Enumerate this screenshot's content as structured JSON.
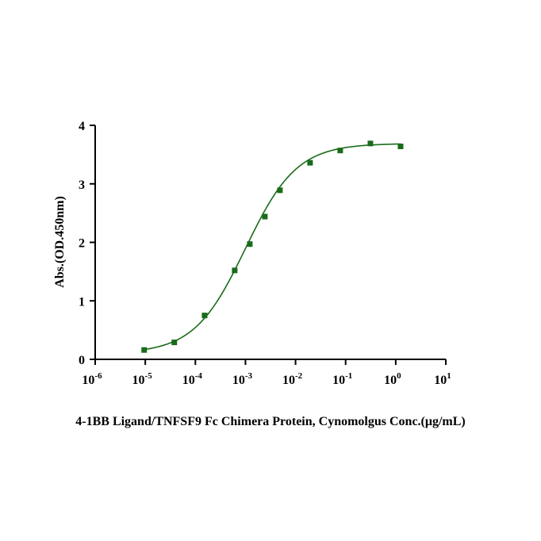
{
  "chart_data": {
    "type": "scatter",
    "title": "",
    "xscale": "log",
    "xlabel": "4-1BB Ligand/TNFSF9 Fc Chimera Protein, Cynomolgus  Conc.(μg/mL)",
    "ylabel": "Abs.(OD.450nm)",
    "xlim_exp": [
      -6,
      1
    ],
    "ylim": [
      0,
      4
    ],
    "x_ticks": [
      {
        "base": "10",
        "exp": "-6"
      },
      {
        "base": "10",
        "exp": "-5"
      },
      {
        "base": "10",
        "exp": "-4"
      },
      {
        "base": "10",
        "exp": "-3"
      },
      {
        "base": "10",
        "exp": "-2"
      },
      {
        "base": "10",
        "exp": "-1"
      },
      {
        "base": "10",
        "exp": "0"
      },
      {
        "base": "10",
        "exp": "1"
      }
    ],
    "y_ticks": [
      "0",
      "1",
      "2",
      "3",
      "4"
    ],
    "series": [
      {
        "name": "4-1BB Ligand/TNFSF9 Fc Chimera Protein, Cynomolgus",
        "color": "#1a6b1a",
        "x": [
          9.5e-06,
          3.8e-05,
          0.000153,
          0.00061,
          0.00122,
          0.00244,
          0.00488,
          0.0195,
          0.078,
          0.3125,
          1.25
        ],
        "y": [
          0.16,
          0.29,
          0.75,
          1.52,
          1.97,
          2.44,
          2.89,
          3.36,
          3.57,
          3.69,
          3.64
        ]
      }
    ],
    "fit": {
      "type": "4PL",
      "bottom": 0.1,
      "top": 3.69,
      "ec50": 0.001,
      "hill": 0.85
    }
  }
}
